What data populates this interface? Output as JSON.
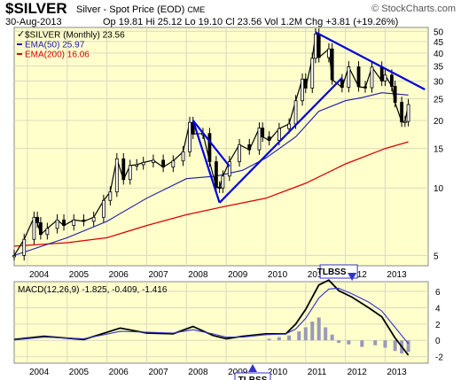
{
  "header": {
    "symbol": "$SILVER",
    "name": "Silver - Spot Price (EOD)",
    "exchange": "CME",
    "watermark": "© StockCharts.com",
    "date": "30-Aug-2013",
    "quote": "Op 19.81  Hi 25.12  Lo 19.10  Cl 23.56  Vol 1.2M  Chg +3.81 (+19.26%)",
    "quote_icon": "up-triangle-icon"
  },
  "colors": {
    "panel_bg": "#ffffcc",
    "grid": "#d9d9c0",
    "candle": "#000000",
    "ema50": "#1a1aaa",
    "ema200": "#dd0000",
    "trendline": "#0000dd",
    "macd_line": "#000000",
    "signal_line": "#3333cc",
    "histogram": "#9999bb",
    "annotation_border": "#3333cc"
  },
  "chart_data": [
    {
      "type": "candlestick",
      "title": "$SILVER (Monthly) 23.56",
      "legend": [
        {
          "name": "$SILVER (Monthly) 23.56",
          "color": "#000000"
        },
        {
          "name": "EMA(50) 25.97",
          "color": "#1a1aaa"
        },
        {
          "name": "EMA(200) 16.06",
          "color": "#dd0000"
        }
      ],
      "legend_position": "top-left",
      "y_scale": "log",
      "ylim": [
        4.5,
        52
      ],
      "y_ticks": [
        5,
        10,
        15,
        20,
        25,
        30,
        35,
        40,
        45,
        50
      ],
      "x_ticks": [
        "2004",
        "2005",
        "2006",
        "2007",
        "2008",
        "2009",
        "2010",
        "2011",
        "2012",
        "2013"
      ],
      "grid": true,
      "close_series": [
        [
          "2003-09",
          5.0
        ],
        [
          "2003-12",
          5.9
        ],
        [
          "2004-03",
          7.4
        ],
        [
          "2004-04",
          7.0
        ],
        [
          "2004-05",
          6.2
        ],
        [
          "2004-07",
          6.6
        ],
        [
          "2004-10",
          7.2
        ],
        [
          "2004-12",
          6.8
        ],
        [
          "2005-03",
          7.2
        ],
        [
          "2005-06",
          7.1
        ],
        [
          "2005-09",
          7.4
        ],
        [
          "2005-12",
          8.8
        ],
        [
          "2006-02",
          9.6
        ],
        [
          "2006-04",
          13.5
        ],
        [
          "2006-06",
          10.9
        ],
        [
          "2006-08",
          12.6
        ],
        [
          "2006-10",
          12.7
        ],
        [
          "2006-12",
          13.0
        ],
        [
          "2007-03",
          13.3
        ],
        [
          "2007-06",
          12.4
        ],
        [
          "2007-09",
          13.2
        ],
        [
          "2007-12",
          14.5
        ],
        [
          "2008-02",
          19.6
        ],
        [
          "2008-03",
          17.4
        ],
        [
          "2008-06",
          17.5
        ],
        [
          "2008-08",
          13.1
        ],
        [
          "2008-10",
          10.1
        ],
        [
          "2008-11",
          10.0
        ],
        [
          "2008-12",
          11.3
        ],
        [
          "2009-02",
          13.1
        ],
        [
          "2009-05",
          15.6
        ],
        [
          "2009-08",
          14.8
        ],
        [
          "2009-11",
          18.5
        ],
        [
          "2009-12",
          16.9
        ],
        [
          "2010-02",
          16.3
        ],
        [
          "2010-05",
          18.4
        ],
        [
          "2010-08",
          19.3
        ],
        [
          "2010-10",
          24.5
        ],
        [
          "2010-12",
          30.6
        ],
        [
          "2011-01",
          27.9
        ],
        [
          "2011-03",
          37.9
        ],
        [
          "2011-04",
          48.6
        ],
        [
          "2011-05",
          38.2
        ],
        [
          "2011-08",
          41.7
        ],
        [
          "2011-09",
          30.4
        ],
        [
          "2011-12",
          28.1
        ],
        [
          "2012-02",
          34.7
        ],
        [
          "2012-05",
          28.3
        ],
        [
          "2012-07",
          28.0
        ],
        [
          "2012-09",
          34.6
        ],
        [
          "2012-12",
          30.0
        ],
        [
          "2013-01",
          31.9
        ],
        [
          "2013-03",
          28.4
        ],
        [
          "2013-04",
          24.1
        ],
        [
          "2013-06",
          19.7
        ],
        [
          "2013-07",
          19.8
        ],
        [
          "2013-08",
          23.56
        ]
      ],
      "ema50_series": [
        [
          "2003-09",
          5.0
        ],
        [
          "2005-01",
          6.0
        ],
        [
          "2006-01",
          7.1
        ],
        [
          "2007-01",
          9.0
        ],
        [
          "2008-01",
          11.0
        ],
        [
          "2008-10",
          11.3
        ],
        [
          "2009-06",
          12.0
        ],
        [
          "2010-01",
          13.6
        ],
        [
          "2010-10",
          16.9
        ],
        [
          "2011-05",
          22.0
        ],
        [
          "2012-01",
          24.5
        ],
        [
          "2012-06",
          25.3
        ],
        [
          "2012-12",
          26.6
        ],
        [
          "2013-08",
          25.97
        ]
      ],
      "ema200_series": [
        [
          "2003-09",
          5.5
        ],
        [
          "2005-01",
          5.7
        ],
        [
          "2006-01",
          6.0
        ],
        [
          "2007-01",
          6.8
        ],
        [
          "2008-01",
          7.6
        ],
        [
          "2009-01",
          8.3
        ],
        [
          "2010-01",
          9.0
        ],
        [
          "2011-01",
          10.5
        ],
        [
          "2012-01",
          12.8
        ],
        [
          "2013-01",
          15.0
        ],
        [
          "2013-08",
          16.06
        ]
      ],
      "trendlines": [
        [
          [
            "2008-03",
            20.0
          ],
          [
            "2008-11",
            8.6
          ]
        ],
        [
          [
            "2008-11",
            8.6
          ],
          [
            "2011-12",
            31.0
          ]
        ],
        [
          [
            "2008-03",
            20.0
          ],
          [
            "2009-02",
            12.5
          ]
        ],
        [
          [
            "2011-04",
            49.5
          ],
          [
            "2014-01",
            27.5
          ]
        ]
      ]
    },
    {
      "type": "line",
      "title": "MACD(12,26,9) -1.825, -0.409, -1.416",
      "ylim": [
        -2.8,
        7.2
      ],
      "y_ticks": [
        -2,
        0,
        2,
        4,
        6
      ],
      "x_ticks": [
        "2004",
        "2005",
        "2006",
        "2007",
        "2008",
        "2009",
        "2010",
        "2011",
        "2012",
        "2013"
      ],
      "grid": true,
      "series": [
        {
          "name": "MACD",
          "points": [
            [
              "2003-09",
              0.1
            ],
            [
              "2004-06",
              0.5
            ],
            [
              "2005-06",
              0.1
            ],
            [
              "2006-05",
              1.5
            ],
            [
              "2007-01",
              0.9
            ],
            [
              "2007-09",
              0.8
            ],
            [
              "2008-03",
              1.7
            ],
            [
              "2008-09",
              0.6
            ],
            [
              "2009-01",
              0.2
            ],
            [
              "2009-06",
              0.5
            ],
            [
              "2010-01",
              0.8
            ],
            [
              "2010-07",
              0.8
            ],
            [
              "2010-10",
              2.0
            ],
            [
              "2011-01",
              3.8
            ],
            [
              "2011-05",
              6.8
            ],
            [
              "2011-08",
              7.4
            ],
            [
              "2011-11",
              6.1
            ],
            [
              "2012-03",
              5.3
            ],
            [
              "2012-08",
              4.0
            ],
            [
              "2012-12",
              2.9
            ],
            [
              "2013-04",
              0.3
            ],
            [
              "2013-08",
              -1.825
            ]
          ]
        },
        {
          "name": "Signal",
          "points": [
            [
              "2003-09",
              0.05
            ],
            [
              "2004-06",
              0.4
            ],
            [
              "2005-06",
              0.2
            ],
            [
              "2006-05",
              1.1
            ],
            [
              "2007-01",
              1.0
            ],
            [
              "2007-09",
              0.9
            ],
            [
              "2008-03",
              1.3
            ],
            [
              "2008-09",
              0.8
            ],
            [
              "2009-01",
              0.4
            ],
            [
              "2009-06",
              0.4
            ],
            [
              "2010-01",
              0.7
            ],
            [
              "2010-07",
              0.8
            ],
            [
              "2010-10",
              1.4
            ],
            [
              "2011-01",
              2.7
            ],
            [
              "2011-05",
              5.2
            ],
            [
              "2011-08",
              6.3
            ],
            [
              "2011-11",
              6.4
            ],
            [
              "2012-03",
              5.7
            ],
            [
              "2012-08",
              4.7
            ],
            [
              "2012-12",
              3.6
            ],
            [
              "2013-04",
              1.6
            ],
            [
              "2013-08",
              -0.409
            ]
          ]
        }
      ],
      "histogram": [
        [
          "2010-02",
          0.2
        ],
        [
          "2010-05",
          0.4
        ],
        [
          "2010-08",
          0.6
        ],
        [
          "2010-11",
          1.1
        ],
        [
          "2011-01",
          1.6
        ],
        [
          "2011-03",
          2.3
        ],
        [
          "2011-05",
          2.8
        ],
        [
          "2011-07",
          1.6
        ],
        [
          "2011-09",
          0.7
        ],
        [
          "2011-11",
          -0.3
        ],
        [
          "2012-02",
          -0.5
        ],
        [
          "2012-06",
          -0.8
        ],
        [
          "2012-10",
          -0.6
        ],
        [
          "2013-01",
          -0.9
        ],
        [
          "2013-04",
          -1.3
        ],
        [
          "2013-06",
          -1.6
        ],
        [
          "2013-08",
          -1.416
        ]
      ],
      "annotations": [
        {
          "label": "TLBSS",
          "x": "2009-09",
          "direction": "up"
        },
        {
          "label": "TLBSS",
          "x": "2011-11",
          "direction": "down"
        }
      ]
    }
  ]
}
